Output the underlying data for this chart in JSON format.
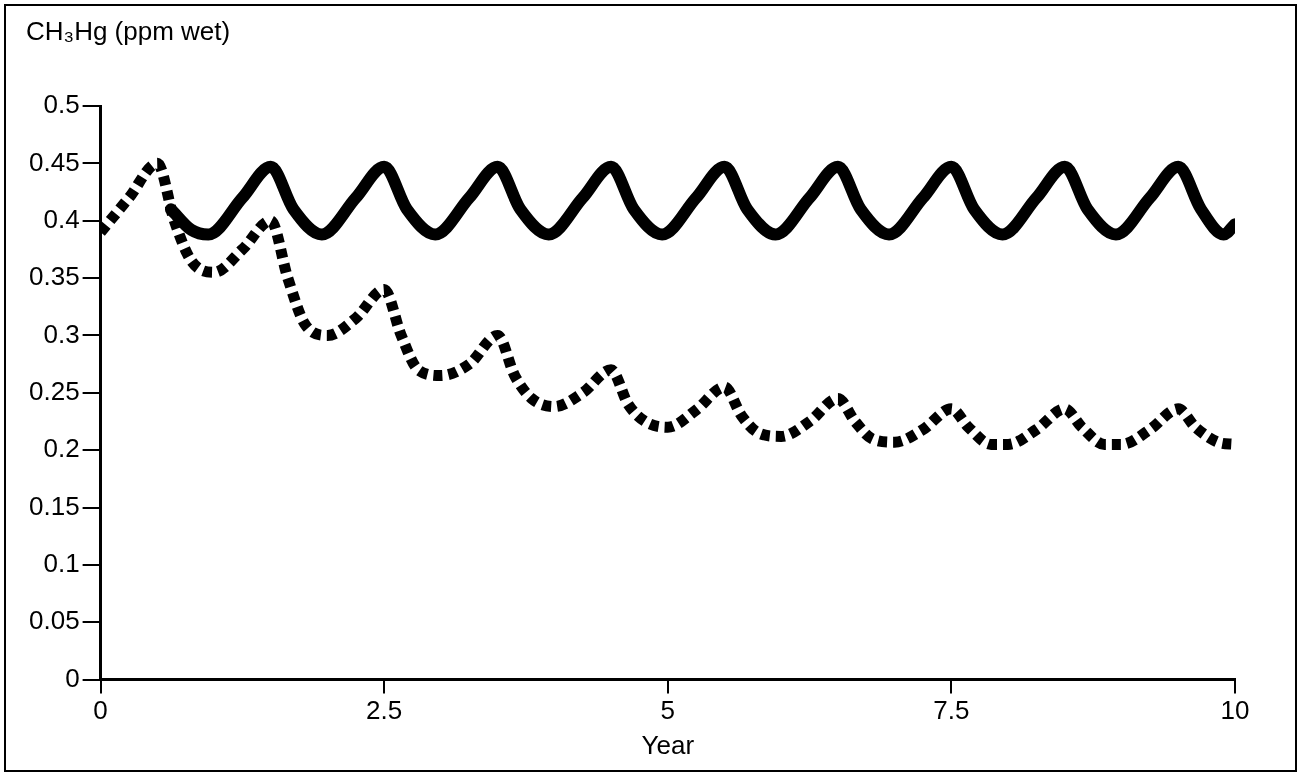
{
  "chart_data": {
    "type": "line",
    "ylabel": "CH₃Hg (ppm wet)",
    "xlabel": "Year",
    "xlim": [
      0,
      10
    ],
    "xticks": [
      0,
      2.5,
      5,
      7.5,
      10
    ],
    "ylim": [
      0,
      0.5
    ],
    "yticks": [
      0,
      0.05,
      0.1,
      0.15,
      0.2,
      0.25,
      0.3,
      0.35,
      0.4,
      0.45,
      0.5
    ],
    "grid": false,
    "legend": false,
    "marker": "none",
    "series": [
      {
        "color": "#000000",
        "line_style": "solid",
        "x": [
          0.62,
          0.8,
          0.95,
          1.25,
          1.5,
          1.7,
          1.95,
          2.25,
          2.5,
          2.7,
          2.95,
          3.25,
          3.5,
          3.7,
          3.95,
          4.25,
          4.5,
          4.7,
          4.95,
          5.25,
          5.5,
          5.7,
          5.95,
          6.25,
          6.5,
          6.7,
          6.95,
          7.25,
          7.5,
          7.7,
          7.95,
          8.25,
          8.5,
          8.7,
          8.95,
          9.25,
          9.5,
          9.7,
          9.9,
          10
        ],
        "values": [
          0.41,
          0.392,
          0.388,
          0.42,
          0.447,
          0.41,
          0.388,
          0.42,
          0.447,
          0.41,
          0.388,
          0.42,
          0.447,
          0.41,
          0.388,
          0.42,
          0.447,
          0.41,
          0.388,
          0.42,
          0.447,
          0.41,
          0.388,
          0.42,
          0.447,
          0.41,
          0.388,
          0.42,
          0.447,
          0.41,
          0.388,
          0.42,
          0.447,
          0.41,
          0.388,
          0.42,
          0.447,
          0.41,
          0.388,
          0.397
        ]
      },
      {
        "color": "#000000",
        "line_style": "dashed",
        "x": [
          0,
          0.25,
          0.5,
          0.65,
          0.8,
          1,
          1.25,
          1.5,
          1.65,
          1.8,
          2,
          2.25,
          2.5,
          2.65,
          2.8,
          3,
          3.25,
          3.5,
          3.65,
          3.8,
          4,
          4.25,
          4.5,
          4.65,
          4.8,
          5,
          5.25,
          5.5,
          5.65,
          5.8,
          6,
          6.25,
          6.5,
          6.65,
          6.8,
          7,
          7.25,
          7.5,
          7.65,
          7.85,
          8,
          8.25,
          8.5,
          8.65,
          8.85,
          9,
          9.25,
          9.5,
          9.65,
          9.85,
          10
        ],
        "values": [
          0.39,
          0.42,
          0.45,
          0.4,
          0.365,
          0.355,
          0.375,
          0.4,
          0.35,
          0.31,
          0.3,
          0.315,
          0.34,
          0.3,
          0.27,
          0.265,
          0.275,
          0.3,
          0.265,
          0.245,
          0.238,
          0.25,
          0.27,
          0.24,
          0.225,
          0.22,
          0.235,
          0.255,
          0.23,
          0.215,
          0.212,
          0.225,
          0.245,
          0.225,
          0.21,
          0.207,
          0.218,
          0.236,
          0.22,
          0.205,
          0.205,
          0.218,
          0.236,
          0.22,
          0.205,
          0.205,
          0.218,
          0.236,
          0.22,
          0.207,
          0.205
        ]
      }
    ]
  }
}
